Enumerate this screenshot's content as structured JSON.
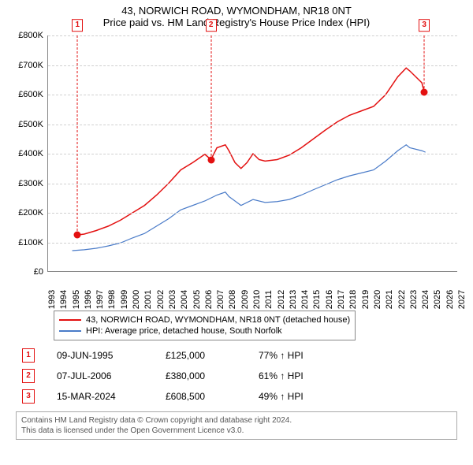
{
  "title_line1": "43, NORWICH ROAD, WYMONDHAM, NR18 0NT",
  "title_line2": "Price paid vs. HM Land Registry's House Price Index (HPI)",
  "chart": {
    "type": "line",
    "background_color": "#ffffff",
    "grid_color": "#d0d0d0",
    "axis_color": "#888888",
    "x_years": [
      1993,
      1994,
      1995,
      1996,
      1997,
      1998,
      1999,
      2000,
      2001,
      2002,
      2003,
      2004,
      2005,
      2006,
      2007,
      2008,
      2009,
      2010,
      2011,
      2012,
      2013,
      2014,
      2015,
      2016,
      2017,
      2018,
      2019,
      2020,
      2021,
      2022,
      2023,
      2024,
      2025,
      2026,
      2027
    ],
    "x_min": 1993,
    "x_max": 2027,
    "y_min": 0,
    "y_max": 800000,
    "y_ticks": [
      0,
      100000,
      200000,
      300000,
      400000,
      500000,
      600000,
      700000,
      800000
    ],
    "y_tick_labels": [
      "£0",
      "£100K",
      "£200K",
      "£300K",
      "£400K",
      "£500K",
      "£600K",
      "£700K",
      "£800K"
    ],
    "series": [
      {
        "name": "price_paid",
        "label": "43, NORWICH ROAD, WYMONDHAM, NR18 0NT (detached house)",
        "color": "#e31010",
        "line_width": 1.5,
        "points": [
          [
            1995.44,
            125000
          ],
          [
            1996,
            128000
          ],
          [
            1997,
            140000
          ],
          [
            1998,
            155000
          ],
          [
            1999,
            175000
          ],
          [
            2000,
            200000
          ],
          [
            2001,
            225000
          ],
          [
            2002,
            260000
          ],
          [
            2003,
            300000
          ],
          [
            2004,
            345000
          ],
          [
            2005,
            370000
          ],
          [
            2006,
            398000
          ],
          [
            2006.51,
            380000
          ],
          [
            2007,
            420000
          ],
          [
            2007.7,
            430000
          ],
          [
            2008,
            410000
          ],
          [
            2008.5,
            370000
          ],
          [
            2009,
            350000
          ],
          [
            2009.5,
            370000
          ],
          [
            2010,
            400000
          ],
          [
            2010.5,
            380000
          ],
          [
            2011,
            375000
          ],
          [
            2012,
            380000
          ],
          [
            2013,
            395000
          ],
          [
            2014,
            420000
          ],
          [
            2015,
            450000
          ],
          [
            2016,
            480000
          ],
          [
            2017,
            508000
          ],
          [
            2018,
            530000
          ],
          [
            2019,
            545000
          ],
          [
            2020,
            560000
          ],
          [
            2021,
            600000
          ],
          [
            2022,
            660000
          ],
          [
            2022.7,
            690000
          ],
          [
            2023,
            680000
          ],
          [
            2023.5,
            660000
          ],
          [
            2024,
            640000
          ],
          [
            2024.2,
            608500
          ]
        ]
      },
      {
        "name": "hpi",
        "label": "HPI: Average price, detached house, South Norfolk",
        "color": "#4a7bc8",
        "line_width": 1.2,
        "points": [
          [
            1995,
            72000
          ],
          [
            1996,
            75000
          ],
          [
            1997,
            80000
          ],
          [
            1998,
            88000
          ],
          [
            1999,
            98000
          ],
          [
            2000,
            115000
          ],
          [
            2001,
            130000
          ],
          [
            2002,
            155000
          ],
          [
            2003,
            180000
          ],
          [
            2004,
            210000
          ],
          [
            2005,
            225000
          ],
          [
            2006,
            240000
          ],
          [
            2007,
            260000
          ],
          [
            2007.7,
            270000
          ],
          [
            2008,
            255000
          ],
          [
            2009,
            225000
          ],
          [
            2010,
            245000
          ],
          [
            2011,
            235000
          ],
          [
            2012,
            238000
          ],
          [
            2013,
            245000
          ],
          [
            2014,
            260000
          ],
          [
            2015,
            278000
          ],
          [
            2016,
            295000
          ],
          [
            2017,
            312000
          ],
          [
            2018,
            325000
          ],
          [
            2019,
            335000
          ],
          [
            2020,
            345000
          ],
          [
            2021,
            375000
          ],
          [
            2022,
            410000
          ],
          [
            2022.7,
            430000
          ],
          [
            2023,
            420000
          ],
          [
            2024,
            410000
          ],
          [
            2024.3,
            405000
          ]
        ]
      }
    ],
    "markers": [
      {
        "n": "1",
        "year": 1995.44,
        "value": 125000,
        "color": "#e31010"
      },
      {
        "n": "2",
        "year": 2006.51,
        "value": 380000,
        "color": "#e31010"
      },
      {
        "n": "3",
        "year": 2024.2,
        "value": 608500,
        "color": "#e31010"
      }
    ]
  },
  "legend": {
    "items": [
      {
        "color": "#e31010",
        "label": "43, NORWICH ROAD, WYMONDHAM, NR18 0NT (detached house)"
      },
      {
        "color": "#4a7bc8",
        "label": "HPI: Average price, detached house, South Norfolk"
      }
    ]
  },
  "sales": [
    {
      "n": "1",
      "color": "#e31010",
      "date": "09-JUN-1995",
      "price": "£125,000",
      "hpi": "77% ↑ HPI"
    },
    {
      "n": "2",
      "color": "#e31010",
      "date": "07-JUL-2006",
      "price": "£380,000",
      "hpi": "61% ↑ HPI"
    },
    {
      "n": "3",
      "color": "#e31010",
      "date": "15-MAR-2024",
      "price": "£608,500",
      "hpi": "49% ↑ HPI"
    }
  ],
  "attribution_line1": "Contains HM Land Registry data © Crown copyright and database right 2024.",
  "attribution_line2": "This data is licensed under the Open Government Licence v3.0."
}
